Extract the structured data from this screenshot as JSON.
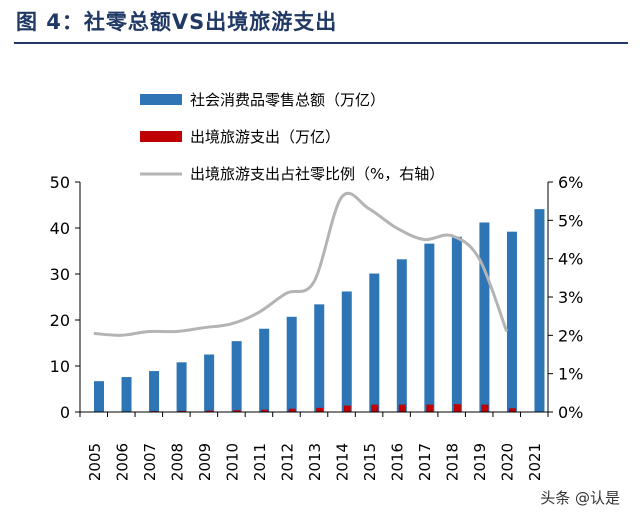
{
  "figure_title": "图 4：社零总额VS出境旅游支出",
  "watermark": "头条 @认是",
  "colors": {
    "retail": "#2e75b6",
    "outbound": "#c00000",
    "ratio": "#b4b4b4",
    "title": "#1f3864"
  },
  "chart_data": {
    "type": "bar",
    "categories": [
      "2005",
      "2006",
      "2007",
      "2008",
      "2009",
      "2010",
      "2011",
      "2012",
      "2013",
      "2014",
      "2015",
      "2016",
      "2017",
      "2018",
      "2019",
      "2020",
      "2021"
    ],
    "series": [
      {
        "name": "社会消费品零售总额（万亿）",
        "type": "bar",
        "axis": "left",
        "values": [
          6.7,
          7.6,
          8.9,
          10.8,
          12.5,
          15.4,
          18.1,
          20.7,
          23.4,
          26.2,
          30.1,
          33.2,
          36.6,
          38.1,
          41.2,
          39.2,
          44.1
        ]
      },
      {
        "name": "出境旅游支出（万亿）",
        "type": "bar",
        "axis": "left",
        "values": [
          0.1,
          0.1,
          0.2,
          0.25,
          0.3,
          0.4,
          0.5,
          0.7,
          0.9,
          1.4,
          1.6,
          1.6,
          1.6,
          1.7,
          1.6,
          0.8,
          null
        ]
      },
      {
        "name": "出境旅游支出占社零比例（%，右轴）",
        "type": "line",
        "axis": "right",
        "values": [
          2.05,
          2.0,
          2.1,
          2.1,
          2.2,
          2.3,
          2.6,
          3.1,
          3.4,
          5.6,
          5.3,
          4.8,
          4.5,
          4.6,
          4.0,
          2.1,
          null
        ]
      }
    ],
    "y_left": {
      "min": 0,
      "max": 50,
      "ticks": [
        "0",
        "10",
        "20",
        "30",
        "40",
        "50"
      ]
    },
    "y_right": {
      "min": 0,
      "max": 6,
      "ticks": [
        "0%",
        "1%",
        "2%",
        "3%",
        "4%",
        "5%",
        "6%"
      ]
    },
    "grid": false,
    "legend_position": "top-left"
  }
}
